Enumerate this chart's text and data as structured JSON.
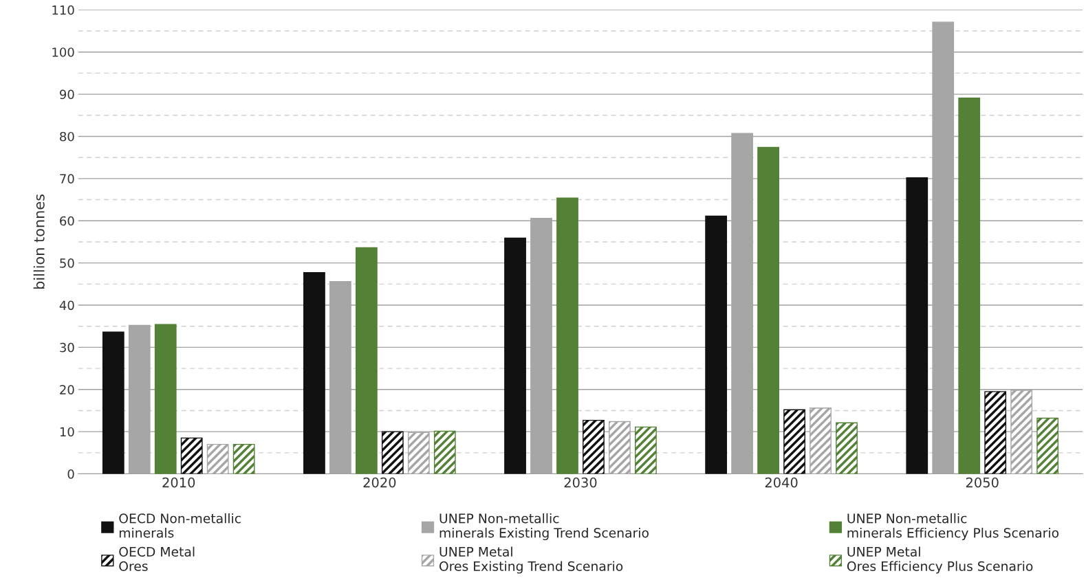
{
  "chart_data": {
    "type": "bar",
    "ylabel": "billion tonnes",
    "categories": [
      "2010",
      "2020",
      "2030",
      "2040",
      "2050"
    ],
    "series": [
      {
        "name": "OECD Non-metallic\nminerals",
        "color": "#111111",
        "values": [
          33.6,
          47.7,
          55.9,
          61.1,
          70.2
        ]
      },
      {
        "name": "UNEP Non-metallic\nminerals Existing Trend Scenario",
        "color": "#a6a6a6",
        "values": [
          35.2,
          45.6,
          60.6,
          80.7,
          107.1
        ]
      },
      {
        "name": "UNEP Non-metallic\nminerals Efficiency Plus Scenario",
        "color": "#538135",
        "values": [
          35.4,
          53.6,
          65.4,
          77.4,
          89.1
        ]
      },
      {
        "name": "OECD Metal\nOres",
        "color": "#111111",
        "values": [
          8.5,
          10.0,
          12.7,
          15.2,
          19.5
        ]
      },
      {
        "name": "UNEP Metal\nOres Existing Trend Scenario",
        "color": "#a6a6a6",
        "values": [
          7.0,
          9.8,
          12.4,
          15.6,
          19.8
        ]
      },
      {
        "name": "UNEP Metal\nOres Efficiency Plus Scenario",
        "color": "#538135",
        "values": [
          7.0,
          10.1,
          11.1,
          12.1,
          13.2
        ]
      }
    ],
    "ylim": [
      0,
      110
    ],
    "yticks": [
      0,
      {
        "value": 5,
        "label": null
      },
      10,
      {
        "value": 15,
        "label": null
      },
      20,
      {
        "value": 25,
        "label": null
      },
      30,
      {
        "value": 35,
        "label": null
      },
      40,
      {
        "value": 45,
        "label": null
      },
      50,
      {
        "value": 55,
        "label": null
      },
      60,
      {
        "value": 65,
        "label": null
      },
      70,
      {
        "value": 75,
        "label": null
      },
      80,
      {
        "value": 85,
        "label": null
      },
      90,
      {
        "value": 95,
        "label": null
      },
      100,
      {
        "value": 105,
        "label": null
      },
      110
    ],
    "grid": "y",
    "legend": "bottom"
  }
}
